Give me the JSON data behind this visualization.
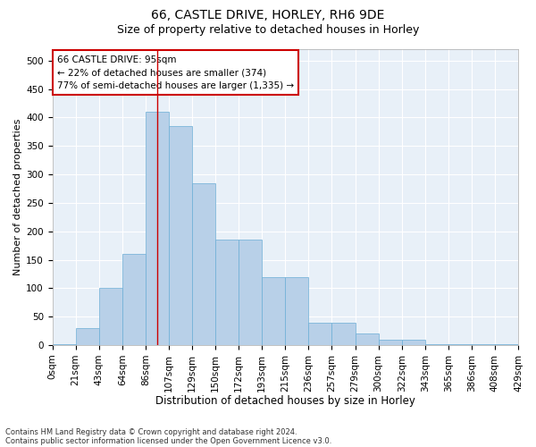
{
  "title_line1": "66, CASTLE DRIVE, HORLEY, RH6 9DE",
  "title_line2": "Size of property relative to detached houses in Horley",
  "xlabel": "Distribution of detached houses by size in Horley",
  "ylabel": "Number of detached properties",
  "footer_line1": "Contains HM Land Registry data © Crown copyright and database right 2024.",
  "footer_line2": "Contains public sector information licensed under the Open Government Licence v3.0.",
  "annotation_line1": "66 CASTLE DRIVE: 95sqm",
  "annotation_line2": "← 22% of detached houses are smaller (374)",
  "annotation_line3": "77% of semi-detached houses are larger (1,335) →",
  "bin_labels": [
    "0sqm",
    "21sqm",
    "43sqm",
    "64sqm",
    "86sqm",
    "107sqm",
    "129sqm",
    "150sqm",
    "172sqm",
    "193sqm",
    "215sqm",
    "236sqm",
    "257sqm",
    "279sqm",
    "300sqm",
    "322sqm",
    "343sqm",
    "365sqm",
    "386sqm",
    "408sqm",
    "429sqm"
  ],
  "bar_values": [
    2,
    30,
    100,
    160,
    410,
    385,
    285,
    185,
    185,
    120,
    120,
    40,
    40,
    20,
    10,
    10,
    2,
    1,
    1,
    1
  ],
  "bar_color": "#b8d0e8",
  "bar_edge_color": "#6baed6",
  "vline_color": "#cc0000",
  "vline_bin_index": 4,
  "ylim": [
    0,
    520
  ],
  "yticks": [
    0,
    50,
    100,
    150,
    200,
    250,
    300,
    350,
    400,
    450,
    500
  ],
  "bg_color": "#e8f0f8",
  "annotation_box_facecolor": "#ffffff",
  "annotation_box_edgecolor": "#cc0000",
  "grid_color": "#ffffff",
  "title1_fontsize": 10,
  "title2_fontsize": 9,
  "xlabel_fontsize": 8.5,
  "ylabel_fontsize": 8,
  "tick_fontsize": 7.5,
  "annotation_fontsize": 7.5,
  "footer_fontsize": 6
}
